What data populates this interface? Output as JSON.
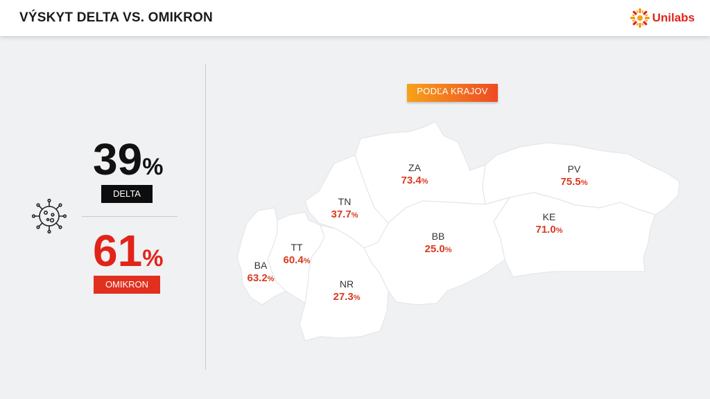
{
  "header": {
    "title": "VÝSKYT DELTA VS. OMIKRON",
    "logo_text": "Unilabs"
  },
  "summary": {
    "delta_value": "39",
    "delta_unit": "%",
    "delta_label": "DELTA",
    "omicron_value": "61",
    "omicron_unit": "%",
    "omicron_label": "OMIKRON"
  },
  "map": {
    "filter_button": "PODĽA KRAJOV",
    "regions": [
      {
        "code": "ZA",
        "value": "73.4",
        "unit": "%"
      },
      {
        "code": "PV",
        "value": "75.5",
        "unit": "%"
      },
      {
        "code": "TN",
        "value": "37.7",
        "unit": "%"
      },
      {
        "code": "KE",
        "value": "71.0",
        "unit": "%"
      },
      {
        "code": "BB",
        "value": "25.0",
        "unit": "%"
      },
      {
        "code": "TT",
        "value": "60.4",
        "unit": "%"
      },
      {
        "code": "BA",
        "value": "63.2",
        "unit": "%"
      },
      {
        "code": "NR",
        "value": "27.3",
        "unit": "%"
      }
    ]
  },
  "icons": {
    "logo": "sun-logo-icon",
    "virus": "virus-icon"
  },
  "colors": {
    "accent_red": "#e2231a",
    "delta_black": "#0d0d0d",
    "button_gradient_start": "#f7a11a",
    "button_gradient_end": "#ef4a23",
    "map_fill": "#ffffff",
    "background": "#f0f1f3"
  }
}
